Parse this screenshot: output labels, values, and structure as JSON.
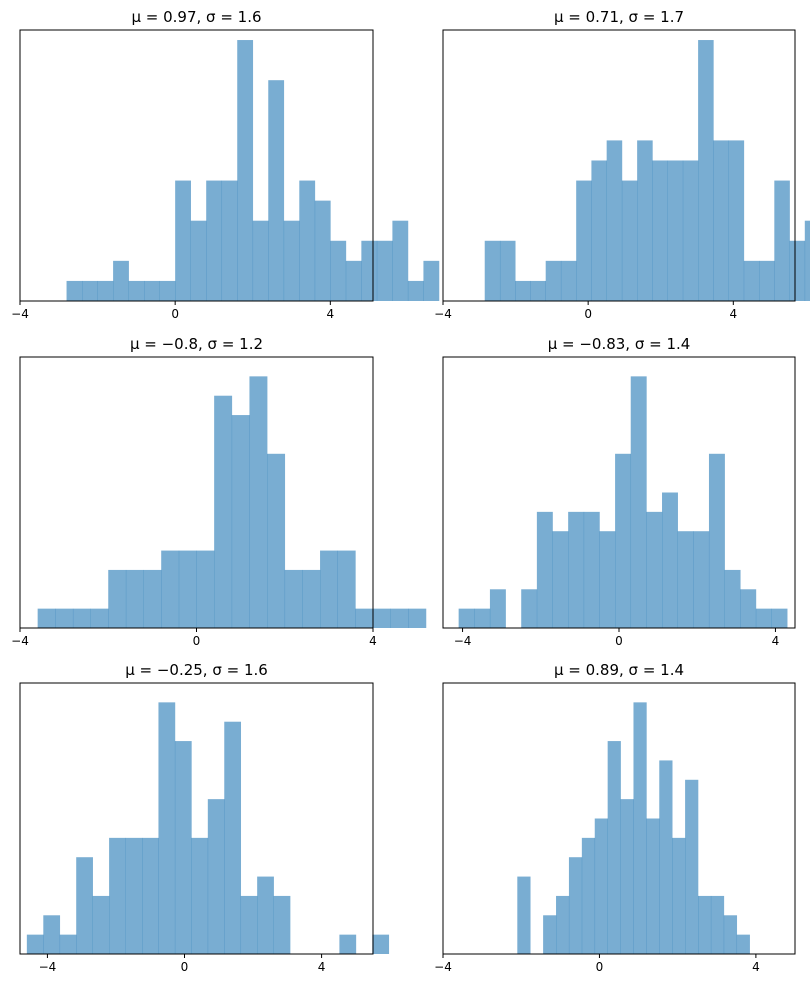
{
  "chart_data": [
    {
      "type": "bar",
      "title": "μ = 0.97,    σ = 1.6",
      "xlabel": "",
      "ylabel": "",
      "xlim": [
        -4,
        5.1
      ],
      "ylim": [
        0,
        13.5
      ],
      "xticks": [
        -4,
        0,
        4
      ],
      "bins_start": -2.8,
      "bin_width": 0.4,
      "counts": [
        1,
        1,
        1,
        2,
        1,
        1,
        1,
        6,
        4,
        6,
        6,
        13,
        4,
        11,
        4,
        6,
        5,
        3,
        2,
        3,
        3,
        4,
        1,
        2
      ],
      "color": "#1f77b4"
    },
    {
      "type": "bar",
      "title": "μ = 0.71,    σ = 1.7",
      "xlabel": "",
      "ylabel": "",
      "xlim": [
        -4,
        5.7
      ],
      "ylim": [
        0,
        13.5
      ],
      "xticks": [
        -4,
        0,
        4
      ],
      "bins_start": -2.85,
      "bin_width": 0.42,
      "counts": [
        3,
        3,
        1,
        1,
        2,
        2,
        6,
        7,
        8,
        6,
        8,
        7,
        7,
        7,
        13,
        8,
        8,
        2,
        2,
        6,
        3,
        4,
        2,
        0,
        1
      ],
      "color": "#1f77b4"
    },
    {
      "type": "bar",
      "title": "μ = −0.8,    σ = 1.2",
      "xlabel": "",
      "ylabel": "",
      "xlim": [
        -4,
        4
      ],
      "ylim": [
        0,
        14
      ],
      "xticks": [
        -4,
        0,
        4
      ],
      "bins_start": -3.6,
      "bin_width": 0.4,
      "counts": [
        1,
        1,
        1,
        1,
        3,
        3,
        3,
        4,
        4,
        4,
        12,
        11,
        13,
        9,
        3,
        3,
        4,
        4,
        1,
        1,
        1,
        1
      ],
      "color": "#1f77b4"
    },
    {
      "type": "bar",
      "title": "μ = −0.83,    σ = 1.4",
      "xlabel": "",
      "ylabel": "",
      "xlim": [
        -4.5,
        4.5
      ],
      "ylim": [
        0,
        14
      ],
      "xticks": [
        -4,
        0,
        4
      ],
      "bins_start": -4.1,
      "bin_width": 0.4,
      "counts": [
        1,
        1,
        2,
        0,
        2,
        6,
        5,
        6,
        6,
        5,
        9,
        13,
        6,
        7,
        5,
        5,
        9,
        3,
        2,
        1,
        1
      ],
      "color": "#1f77b4"
    },
    {
      "type": "bar",
      "title": "μ = −0.25,    σ = 1.6",
      "xlabel": "",
      "ylabel": "",
      "xlim": [
        -4.8,
        5.5
      ],
      "ylim": [
        0,
        14
      ],
      "xticks": [
        -4,
        0,
        4
      ],
      "bins_start": -4.6,
      "bin_width": 0.48,
      "counts": [
        1,
        2,
        1,
        5,
        3,
        6,
        6,
        6,
        13,
        11,
        6,
        8,
        12,
        3,
        4,
        3,
        0,
        0,
        0,
        1,
        0,
        1
      ],
      "color": "#1f77b4"
    },
    {
      "type": "bar",
      "title": "μ = 0.89,    σ = 1.4",
      "xlabel": "",
      "ylabel": "",
      "xlim": [
        -4,
        5
      ],
      "ylim": [
        0,
        14
      ],
      "xticks": [
        -4,
        0,
        4
      ],
      "bins_start": -2.1,
      "bin_width": 0.33,
      "counts": [
        4,
        0,
        2,
        3,
        5,
        6,
        7,
        11,
        8,
        13,
        7,
        10,
        6,
        9,
        3,
        3,
        2,
        1
      ],
      "color": "#1f77b4"
    }
  ]
}
